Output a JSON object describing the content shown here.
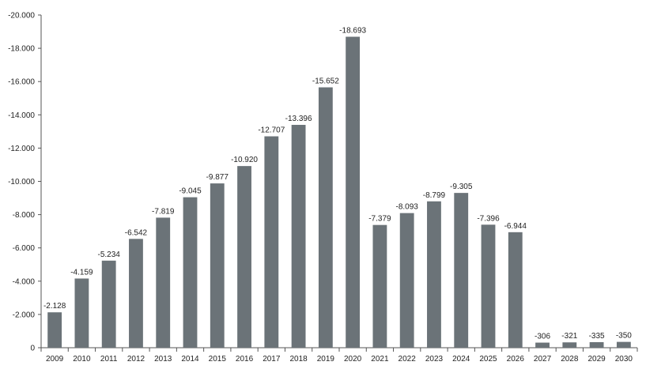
{
  "chart_data": {
    "type": "bar",
    "categories": [
      "2009",
      "2010",
      "2011",
      "2012",
      "2013",
      "2014",
      "2015",
      "2016",
      "2017",
      "2018",
      "2019",
      "2020",
      "2021",
      "2022",
      "2023",
      "2024",
      "2025",
      "2026",
      "2027",
      "2028",
      "2029",
      "2030"
    ],
    "values": [
      -2128,
      -4159,
      -5234,
      -6542,
      -7819,
      -9045,
      -9877,
      -10920,
      -12707,
      -13396,
      -15652,
      -18693,
      -7379,
      -8093,
      -8799,
      -9305,
      -7396,
      -6944,
      -306,
      -321,
      -335,
      -350
    ],
    "data_labels": [
      "-2.128",
      "-4.159",
      "-5.234",
      "-6.542",
      "-7.819",
      "-9.045",
      "-9.877",
      "-10.920",
      "-12.707",
      "-13.396",
      "-15.652",
      "-18.693",
      "-7.379",
      "-8.093",
      "-8.799",
      "-9.305",
      "-7.396",
      "-6.944",
      "-306",
      "-321",
      "-335",
      "-350"
    ],
    "y_ticks": [
      0,
      -2000,
      -4000,
      -6000,
      -8000,
      -10000,
      -12000,
      -14000,
      -16000,
      -18000,
      -20000
    ],
    "y_tick_labels": [
      "0",
      "-2.000",
      "-4.000",
      "-6.000",
      "-8.000",
      "-10.000",
      "-12.000",
      "-14.000",
      "-16.000",
      "-18.000",
      "-20.000"
    ],
    "ylim": [
      0,
      -20000
    ],
    "y_axis_inverted": true,
    "grid": false,
    "bar_color": "#6b7378",
    "axis_color": "#555555",
    "title": "",
    "xlabel": "",
    "ylabel": ""
  }
}
